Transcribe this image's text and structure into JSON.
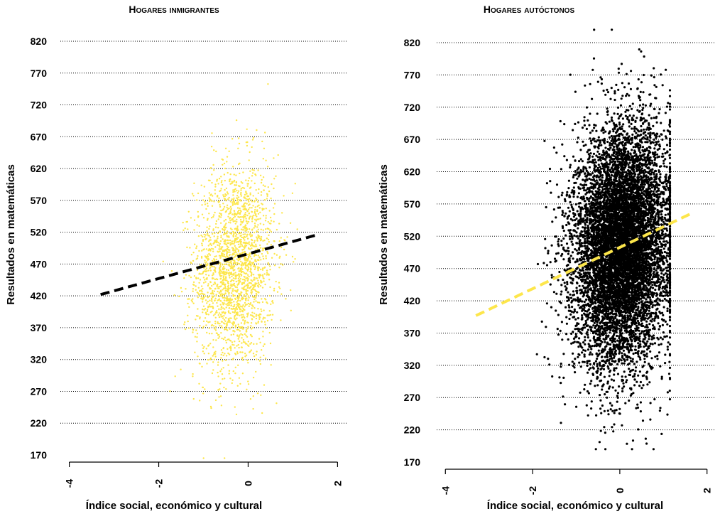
{
  "colors": {
    "yellow": "#fde64b",
    "black": "#000000"
  },
  "chart_data": [
    {
      "type": "scatter",
      "title": "Hogares inmigrantes",
      "xlabel": "Índice social, económico y cultural",
      "ylabel": "Resultados en matemáticas",
      "xlim": [
        -4.2,
        2.2
      ],
      "ylim": [
        165,
        830
      ],
      "x_ticks": [
        "-4",
        "-2",
        "0",
        "2"
      ],
      "y_ticks": [
        "170",
        "220",
        "270",
        "320",
        "370",
        "420",
        "470",
        "520",
        "570",
        "620",
        "670",
        "720",
        "770",
        "820"
      ],
      "grid": "horizontal dotted",
      "point_color": "#fde64b",
      "scatter_summary": {
        "n_points": 2200,
        "x_mean": -0.3,
        "x_sd": 0.45,
        "x_range": [
          -1.9,
          1.1
        ],
        "y_mean": 465,
        "y_sd": 80,
        "y_range": [
          165,
          805
        ]
      },
      "series": [
        {
          "type": "line",
          "style": "dashed",
          "color": "#000000",
          "x": [
            -3.3,
            1.6
          ],
          "y": [
            422,
            517
          ]
        }
      ]
    },
    {
      "type": "scatter",
      "title": "Hogares autóctonos",
      "xlabel": "Índice social, económico y cultural",
      "ylabel": "Resultados en matemáticas",
      "xlim": [
        -4.2,
        2.2
      ],
      "ylim": [
        165,
        845
      ],
      "x_ticks": [
        "-4",
        "-2",
        "0",
        "2"
      ],
      "y_ticks": [
        "170",
        "220",
        "270",
        "320",
        "370",
        "420",
        "470",
        "520",
        "570",
        "620",
        "670",
        "720",
        "770",
        "820"
      ],
      "grid": "horizontal dotted",
      "point_color": "#000000",
      "scatter_summary": {
        "n_points": 9000,
        "x_mean": 0.05,
        "x_sd": 0.55,
        "x_range": [
          -1.9,
          1.15
        ],
        "y_mean": 505,
        "y_sd": 90,
        "y_range": [
          190,
          840
        ]
      },
      "series": [
        {
          "type": "line",
          "style": "dashed",
          "color": "#fde64b",
          "x": [
            -3.3,
            1.6
          ],
          "y": [
            397,
            554
          ]
        }
      ]
    }
  ]
}
